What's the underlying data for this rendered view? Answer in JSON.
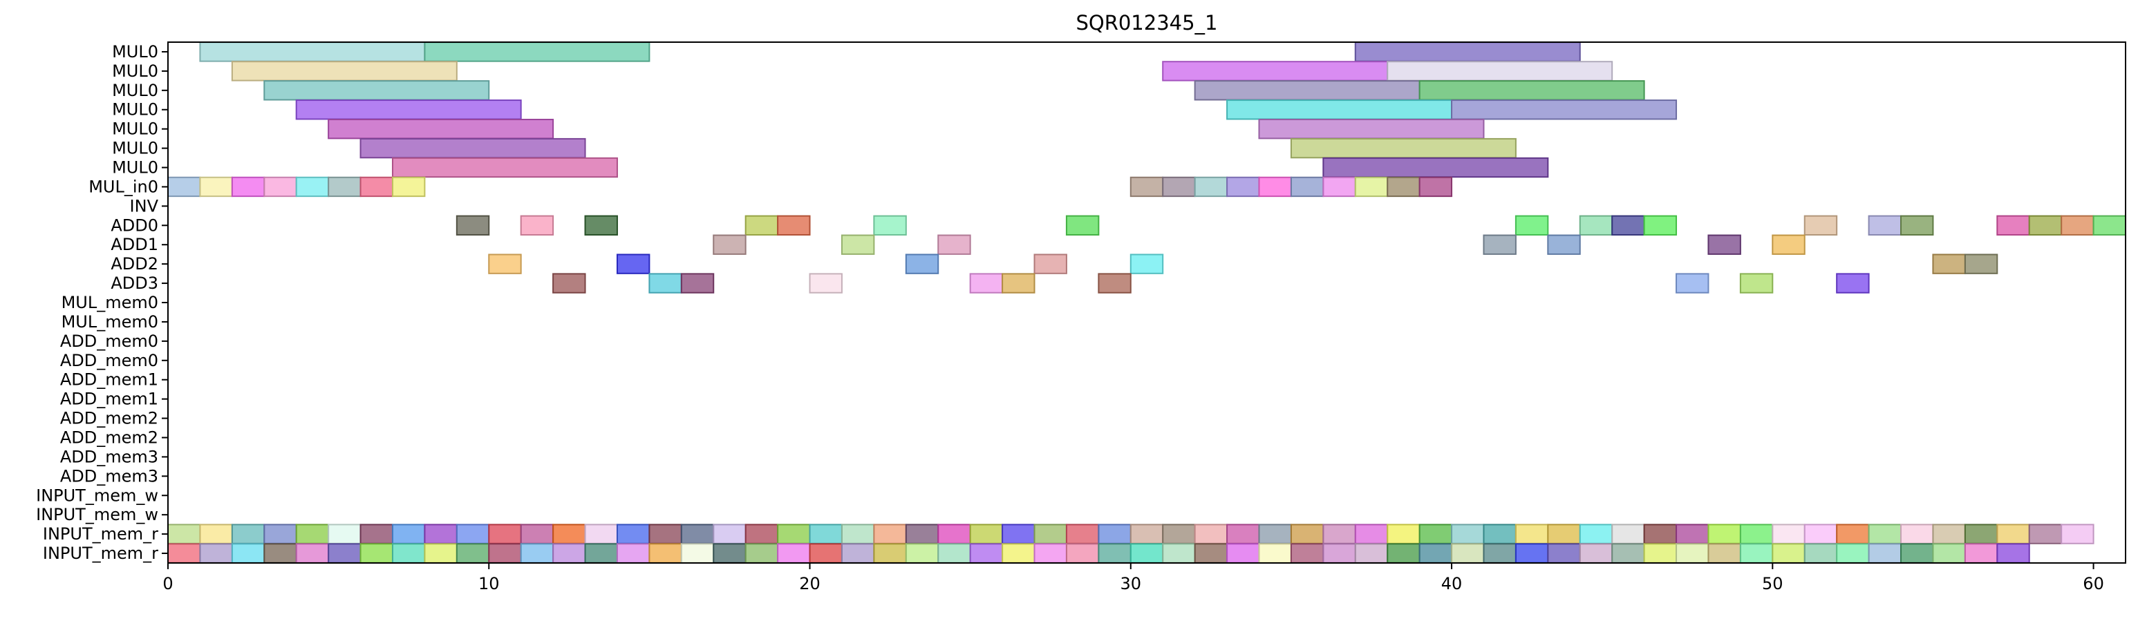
{
  "chart_data": {
    "type": "gantt",
    "title": "SQR012345_1",
    "xlabel": "",
    "ylabel": "",
    "xlim": [
      0,
      61
    ],
    "xticks": [
      0,
      10,
      20,
      30,
      40,
      50,
      60
    ],
    "grid": false,
    "rows": [
      "MUL0",
      "MUL0",
      "MUL0",
      "MUL0",
      "MUL0",
      "MUL0",
      "MUL0",
      "MUL_in0",
      "INV",
      "ADD0",
      "ADD1",
      "ADD2",
      "ADD3",
      "MUL_mem0",
      "MUL_mem0",
      "ADD_mem0",
      "ADD_mem0",
      "ADD_mem1",
      "ADD_mem1",
      "ADD_mem2",
      "ADD_mem2",
      "ADD_mem3",
      "ADD_mem3",
      "INPUT_mem_w",
      "INPUT_mem_w",
      "INPUT_mem_r",
      "INPUT_mem_r"
    ],
    "tasks": [
      {
        "row": 0,
        "start": 1,
        "end": 8,
        "color": "#9ed8d8"
      },
      {
        "row": 0,
        "start": 8,
        "end": 15,
        "color": "#66ccaa"
      },
      {
        "row": 0,
        "start": 37,
        "end": 44,
        "color": "#7766c0"
      },
      {
        "row": 1,
        "start": 2,
        "end": 9,
        "color": "#e8d8a0"
      },
      {
        "row": 1,
        "start": 31,
        "end": 38,
        "color": "#cc66ee"
      },
      {
        "row": 1,
        "start": 38,
        "end": 45,
        "color": "#dcd6ea"
      },
      {
        "row": 2,
        "start": 3,
        "end": 10,
        "color": "#77c4c0"
      },
      {
        "row": 2,
        "start": 32,
        "end": 39,
        "color": "#9088b8"
      },
      {
        "row": 2,
        "start": 39,
        "end": 46,
        "color": "#55bb66"
      },
      {
        "row": 3,
        "start": 4,
        "end": 11,
        "color": "#9955ee"
      },
      {
        "row": 3,
        "start": 33,
        "end": 40,
        "color": "#55e0e0"
      },
      {
        "row": 3,
        "start": 40,
        "end": 47,
        "color": "#8888cc"
      },
      {
        "row": 4,
        "start": 5,
        "end": 12,
        "color": "#c055c0"
      },
      {
        "row": 4,
        "start": 34,
        "end": 41,
        "color": "#bb77cc"
      },
      {
        "row": 5,
        "start": 6,
        "end": 13,
        "color": "#9955bb"
      },
      {
        "row": 5,
        "start": 35,
        "end": 42,
        "color": "#bbcc77"
      },
      {
        "row": 6,
        "start": 7,
        "end": 14,
        "color": "#d866aa"
      },
      {
        "row": 6,
        "start": 36,
        "end": 43,
        "color": "#7744aa"
      },
      {
        "row": 7,
        "start": 0,
        "end": 1,
        "color": "#9ebde0"
      },
      {
        "row": 7,
        "start": 1,
        "end": 2,
        "color": "#f8f0a8"
      },
      {
        "row": 7,
        "start": 2,
        "end": 3,
        "color": "#f066ee"
      },
      {
        "row": 7,
        "start": 3,
        "end": 4,
        "color": "#f8a0d8"
      },
      {
        "row": 7,
        "start": 4,
        "end": 5,
        "color": "#77eef0"
      },
      {
        "row": 7,
        "start": 5,
        "end": 6,
        "color": "#99b8b8"
      },
      {
        "row": 7,
        "start": 6,
        "end": 7,
        "color": "#f0668a"
      },
      {
        "row": 7,
        "start": 7,
        "end": 8,
        "color": "#f0f077"
      },
      {
        "row": 7,
        "start": 30,
        "end": 31,
        "color": "#b09888"
      },
      {
        "row": 7,
        "start": 31,
        "end": 32,
        "color": "#998899"
      },
      {
        "row": 7,
        "start": 32,
        "end": 33,
        "color": "#99cccc"
      },
      {
        "row": 7,
        "start": 33,
        "end": 34,
        "color": "#9988dd"
      },
      {
        "row": 7,
        "start": 34,
        "end": 35,
        "color": "#ff66dd"
      },
      {
        "row": 7,
        "start": 35,
        "end": 36,
        "color": "#8899cc"
      },
      {
        "row": 7,
        "start": 36,
        "end": 37,
        "color": "#ee88ee"
      },
      {
        "row": 7,
        "start": 37,
        "end": 38,
        "color": "#ddf088"
      },
      {
        "row": 7,
        "start": 38,
        "end": 39,
        "color": "#998866"
      },
      {
        "row": 7,
        "start": 39,
        "end": 40,
        "color": "#aa4488"
      },
      {
        "row": 9,
        "start": 9,
        "end": 10,
        "color": "#666655"
      },
      {
        "row": 9,
        "start": 11,
        "end": 12,
        "color": "#f899b8"
      },
      {
        "row": 9,
        "start": 13,
        "end": 14,
        "color": "#336633"
      },
      {
        "row": 9,
        "start": 18,
        "end": 19,
        "color": "#bbcc55"
      },
      {
        "row": 9,
        "start": 19,
        "end": 20,
        "color": "#dd6644"
      },
      {
        "row": 9,
        "start": 22,
        "end": 23,
        "color": "#88f0bb"
      },
      {
        "row": 9,
        "start": 28,
        "end": 29,
        "color": "#55dd55"
      },
      {
        "row": 9,
        "start": 42,
        "end": 43,
        "color": "#55ee66"
      },
      {
        "row": 9,
        "start": 44,
        "end": 45,
        "color": "#88ddaa"
      },
      {
        "row": 9,
        "start": 45,
        "end": 46,
        "color": "#444499"
      },
      {
        "row": 9,
        "start": 46,
        "end": 47,
        "color": "#55ee55"
      },
      {
        "row": 9,
        "start": 51,
        "end": 52,
        "color": "#ddbb99"
      },
      {
        "row": 9,
        "start": 53,
        "end": 54,
        "color": "#aaaadd"
      },
      {
        "row": 9,
        "start": 54,
        "end": 55,
        "color": "#779955"
      },
      {
        "row": 9,
        "start": 57,
        "end": 58,
        "color": "#dd55aa"
      },
      {
        "row": 9,
        "start": 58,
        "end": 59,
        "color": "#99aa44"
      },
      {
        "row": 9,
        "start": 59,
        "end": 60,
        "color": "#dd8855"
      },
      {
        "row": 9,
        "start": 60,
        "end": 61,
        "color": "#66dd66"
      },
      {
        "row": 10,
        "start": 17,
        "end": 18,
        "color": "#bb9999"
      },
      {
        "row": 10,
        "start": 21,
        "end": 22,
        "color": "#bbdd88"
      },
      {
        "row": 10,
        "start": 24,
        "end": 25,
        "color": "#dd99bb"
      },
      {
        "row": 10,
        "start": 41,
        "end": 42,
        "color": "#8899aa"
      },
      {
        "row": 10,
        "start": 43,
        "end": 44,
        "color": "#7799cc"
      },
      {
        "row": 10,
        "start": 48,
        "end": 49,
        "color": "#774488"
      },
      {
        "row": 10,
        "start": 50,
        "end": 51,
        "color": "#f0bb55"
      },
      {
        "row": 11,
        "start": 10,
        "end": 11,
        "color": "#f8c066"
      },
      {
        "row": 11,
        "start": 14,
        "end": 15,
        "color": "#3333ee"
      },
      {
        "row": 11,
        "start": 23,
        "end": 24,
        "color": "#6699dd"
      },
      {
        "row": 11,
        "start": 27,
        "end": 28,
        "color": "#dd9999"
      },
      {
        "row": 11,
        "start": 30,
        "end": 31,
        "color": "#66eef0"
      },
      {
        "row": 11,
        "start": 55,
        "end": 56,
        "color": "#bb9955"
      },
      {
        "row": 11,
        "start": 56,
        "end": 57,
        "color": "#888866"
      },
      {
        "row": 12,
        "start": 12,
        "end": 13,
        "color": "#995555"
      },
      {
        "row": 12,
        "start": 15,
        "end": 16,
        "color": "#55ccdd"
      },
      {
        "row": 12,
        "start": 16,
        "end": 17,
        "color": "#884477"
      },
      {
        "row": 12,
        "start": 20,
        "end": 21,
        "color": "#f8dde8"
      },
      {
        "row": 12,
        "start": 25,
        "end": 26,
        "color": "#f099ee"
      },
      {
        "row": 12,
        "start": 26,
        "end": 27,
        "color": "#ddb055"
      },
      {
        "row": 12,
        "start": 29,
        "end": 30,
        "color": "#aa6655"
      },
      {
        "row": 12,
        "start": 47,
        "end": 48,
        "color": "#88aaee"
      },
      {
        "row": 12,
        "start": 49,
        "end": 50,
        "color": "#aadd66"
      },
      {
        "row": 12,
        "start": 52,
        "end": 53,
        "color": "#7744ee"
      }
    ],
    "mem_rows": {
      "row25": [
        "#bbdd88",
        "#f8e488",
        "#66bbbb",
        "#7788cc",
        "#88cc44",
        "#ddf8ee",
        "#884466",
        "#5599ee",
        "#9944cc",
        "#6688ee",
        "#dd4455",
        "#bb5599",
        "#f06622",
        "#eeccee",
        "#4466ee",
        "#884455",
        "#556688",
        "#ccbbee",
        "#aa4455",
        "#88cc44",
        "#55cccc",
        "#aaddbb",
        "#f0a077",
        "#775577",
        "#dd44bb",
        "#bbcc44",
        "#5544ee",
        "#99bb66",
        "#dd5566",
        "#6688dd",
        "#ccaa99",
        "#998877",
        "#eeaaaa",
        "#cc55aa",
        "#8899aa",
        "#cc9944",
        "#cc88bb",
        "#dd66dd",
        "#f0f055",
        "#55bb44",
        "#88cccc",
        "#44aaaa",
        "#f0dd66",
        "#ddbb44",
        "#66eeee",
        "#dddddd",
        "#884444",
        "#aa4499",
        "#aaf044",
        "#66ee66",
        "#f8ddee",
        "#f8bbf8",
        "#ee7733",
        "#99dd88",
        "#f8cce0",
        "#ccbb99",
        "#668844",
        "#eecc66",
        "#aa7799",
        "#f0bbf0"
      ],
      "row26": [
        "#f06677",
        "#aa99cc",
        "#66ddf0",
        "#776655",
        "#dd77cc",
        "#6655bb",
        "#88dd44",
        "#55ddbb",
        "#ddf066",
        "#55aa66",
        "#aa4466",
        "#77bbee",
        "#bb88dd",
        "#448877",
        "#dd88ee",
        "#f0aa44",
        "#f0f8dd",
        "#446666",
        "#88bb66",
        "#ee77ee",
        "#dd4444",
        "#aa99cc",
        "#ccbb44",
        "#bbee88",
        "#99ddbb",
        "#aa66ee",
        "#f0f066",
        "#f088ee",
        "#f088aa",
        "#55aa99",
        "#44ddbb",
        "#aaddbb",
        "#886655",
        "#dd66ee",
        "#f8f8bb",
        "#aa5577",
        "#cc88cc",
        "#ccaacc",
        "#449944",
        "#448899",
        "#ccddaa",
        "#558888",
        "#3344ee",
        "#6655bb",
        "#ccaacc",
        "#88aa99",
        "#ddf066",
        "#ddf0aa",
        "#ccbb77",
        "#77f0aa",
        "#ccee66",
        "#88ccaa",
        "#77f0aa",
        "#99bbdd",
        "#449966",
        "#99dd88",
        "#ee77cc",
        "#8844dd"
      ]
    }
  }
}
